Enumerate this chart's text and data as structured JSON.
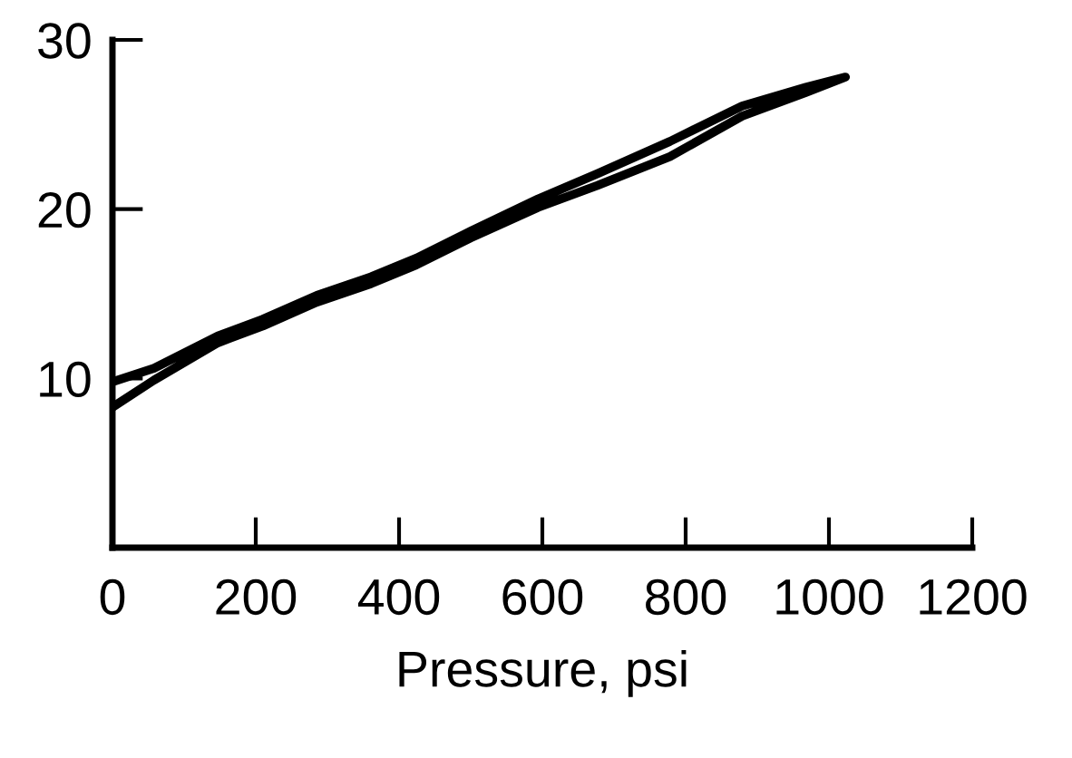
{
  "chart_data": {
    "type": "line",
    "xlabel": "Pressure, psi",
    "x": [
      0,
      58,
      147,
      210,
      285,
      361,
      424,
      500,
      594,
      677,
      778,
      879,
      968,
      1023,
      968,
      879,
      778,
      677,
      594,
      500,
      424,
      361,
      285,
      210,
      147,
      58,
      0
    ],
    "values": [
      8.3,
      9.9,
      12.1,
      13.1,
      14.5,
      15.6,
      16.7,
      18.3,
      20.1,
      21.4,
      23.1,
      25.5,
      26.9,
      27.8,
      27.2,
      26.1,
      24.0,
      22.1,
      20.6,
      18.7,
      17.1,
      16.0,
      14.9,
      13.5,
      12.5,
      10.6,
      9.8
    ],
    "color": "#000000",
    "xlim": [
      0,
      1200
    ],
    "xticks": [
      0,
      200,
      400,
      600,
      800,
      1000,
      1200
    ],
    "ylim": [
      0,
      30
    ],
    "yticks": [
      10,
      20,
      30
    ],
    "grid": false,
    "marker": "none",
    "line_style": "solid"
  }
}
